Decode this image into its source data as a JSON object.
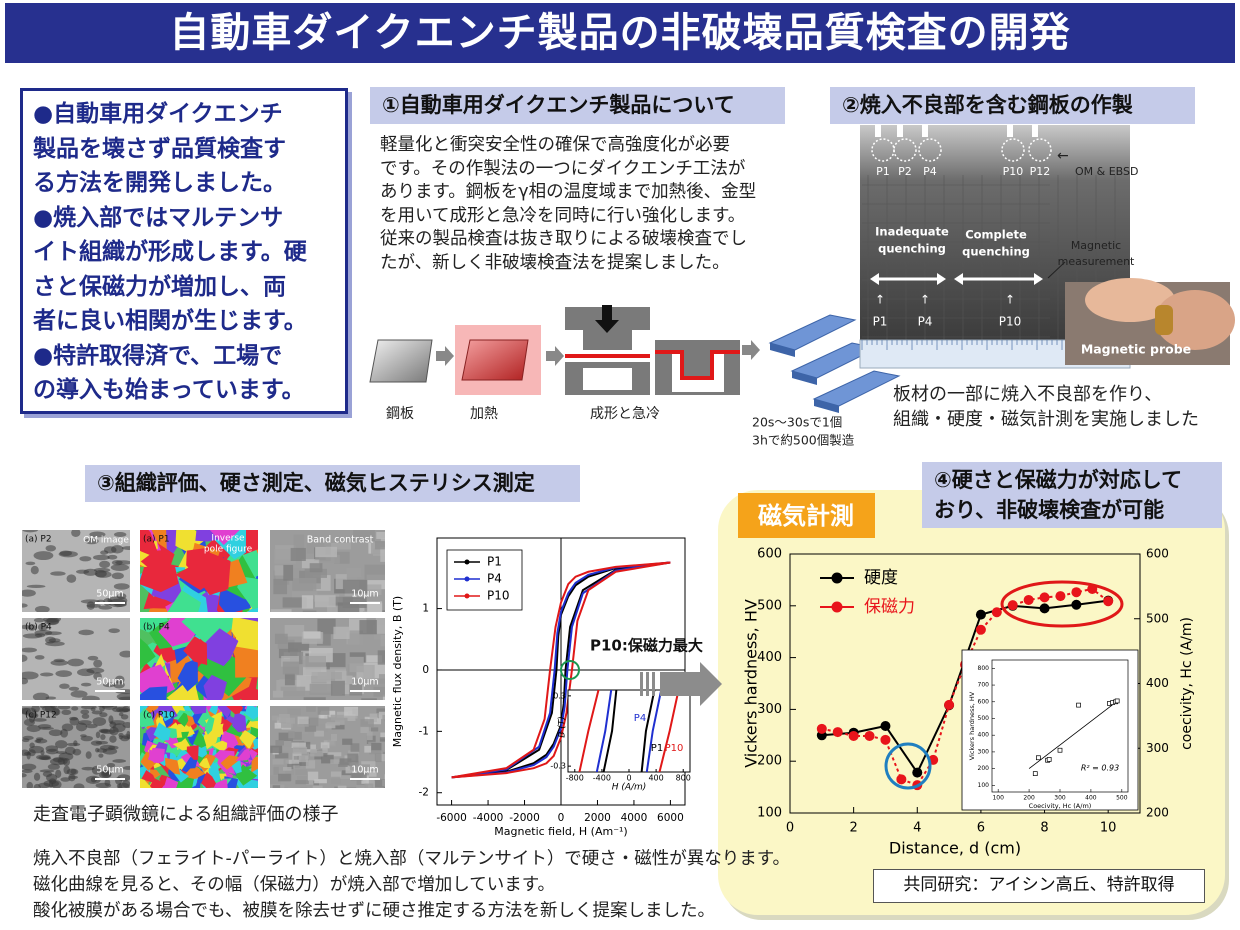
{
  "title": "自動車ダイクエンチ製品の非破壊品質検査の開発",
  "summary": [
    "●自動車用ダイクエンチ",
    "製品を壊さず品質検査す",
    "る方法を開発しました。",
    "●焼入部ではマルテンサ",
    "イト組織が形成します。硬",
    "さと保磁力が増加し、両",
    "者に良い相関が生じます。",
    "●特許取得済で、工場で",
    "の導入も始まっています。"
  ],
  "section1": {
    "heading": "①自動車用ダイクエンチ製品について",
    "text": [
      "軽量化と衝突安全性の確保で高強度化が必要",
      "です。その作製法の一つにダイクエンチ工法が",
      "あります。鋼板をγ相の温度域まで加熱後、金型",
      "を用いて成形と急冷を同時に行い強化します。",
      "従来の製品検査は抜き取りによる破壊検査でし",
      "たが、新しく非破壊検査法を提案しました。"
    ],
    "steps": [
      "鋼板",
      "加熱",
      "成形と急冷"
    ],
    "rate": [
      "20s～30sで1個",
      "3hで約500個製造"
    ]
  },
  "section2": {
    "heading": "②焼入不良部を含む鋼板の作製",
    "points_top": [
      "P1",
      "P2",
      "P4",
      "P10",
      "P12"
    ],
    "om_ebsd": "OM & EBSD",
    "inadequate": [
      "Inadequate",
      "quenching"
    ],
    "complete": [
      "Complete",
      "quenching"
    ],
    "measurement": [
      "Magnetic",
      "measurement"
    ],
    "points_bottom": [
      "P1",
      "P4",
      "P10"
    ],
    "probe": "Magnetic probe",
    "caption": [
      "板材の一部に焼入不良部を作り、",
      "組織・硬度・磁気計測を実施しました"
    ]
  },
  "section3": {
    "heading": "③組織評価、硬さ測定、磁気ヒステリシス測定",
    "om_labels": [
      "(a) P2",
      "(b) P4",
      "(c) P12"
    ],
    "ipf_labels": [
      "(a) P1",
      "(b) P4",
      "(c) P10"
    ],
    "om_title": "OM image",
    "ipf_title": [
      "Inverse",
      "pole figure"
    ],
    "band_title": "Band contrast",
    "om_scale": "50μm",
    "band_scale": "10μm",
    "caption": "走査電子顕微鏡による組織評価の様子"
  },
  "section4": {
    "heading": [
      "④硬さと保磁力が対応して",
      "おり、非破壊検査が可能"
    ],
    "tag": "磁気計測",
    "credit": "共同研究：アイシン高丘、特許取得"
  },
  "notes": [
    "焼入不良部（フェライト-パーライト）と焼入部（マルテンサイト）で硬さ・磁性が異なります。",
    "磁化曲線を見ると、その幅（保磁力）が焼入部で増加しています。",
    "酸化被膜がある場合でも、被膜を除去せずに硬さ推定する方法を新しく提案しました。"
  ],
  "chart_data": [
    {
      "type": "line",
      "xlabel": "Magnetic field, H (Am⁻¹)",
      "ylabel": "Magnetic flux density, B (T)",
      "xlim": [
        -6800,
        6800
      ],
      "ylim": [
        -2.2,
        2.15
      ],
      "xticks": [
        -6000,
        -4000,
        -2000,
        0,
        2000,
        4000,
        6000
      ],
      "yticks": [
        -2,
        -1,
        0,
        1
      ],
      "annotation": "P10:保磁力最大",
      "series": [
        {
          "name": "P1",
          "color": "#000000",
          "x": [
            6000,
            3000,
            1500,
            800,
            400,
            0,
            -150,
            -250,
            -500,
            -1200,
            -3000,
            -6000,
            -3000,
            -1500,
            -800,
            -400,
            0,
            150,
            250,
            500,
            1200,
            3000,
            6000
          ],
          "values": [
            1.75,
            1.66,
            1.52,
            1.38,
            1.2,
            0.9,
            0.55,
            0,
            -0.7,
            -1.3,
            -1.63,
            -1.75,
            -1.66,
            -1.52,
            -1.38,
            -1.2,
            -0.9,
            -0.55,
            0,
            0.7,
            1.3,
            1.63,
            1.75
          ]
        },
        {
          "name": "P4",
          "color": "#1f2fd0",
          "x": [
            6000,
            3000,
            1500,
            800,
            400,
            0,
            -200,
            -350,
            -600,
            -1200,
            -3000,
            -6000,
            -3000,
            -1500,
            -800,
            -400,
            0,
            200,
            350,
            600,
            1200,
            3000,
            6000
          ],
          "values": [
            1.75,
            1.67,
            1.55,
            1.42,
            1.25,
            0.95,
            0.6,
            0,
            -0.7,
            -1.25,
            -1.62,
            -1.75,
            -1.67,
            -1.55,
            -1.42,
            -1.25,
            -0.95,
            -0.6,
            0,
            0.7,
            1.25,
            1.62,
            1.75
          ]
        },
        {
          "name": "P10",
          "color": "#e01818",
          "x": [
            6000,
            3000,
            1500,
            800,
            400,
            0,
            -300,
            -600,
            -900,
            -1500,
            -3000,
            -6000,
            -3000,
            -1500,
            -800,
            -400,
            0,
            300,
            600,
            900,
            1500,
            3000,
            6000
          ],
          "values": [
            1.75,
            1.68,
            1.6,
            1.52,
            1.4,
            1.1,
            0.7,
            0,
            -0.8,
            -1.3,
            -1.6,
            -1.75,
            -1.68,
            -1.6,
            -1.52,
            -1.4,
            -1.1,
            -0.7,
            0,
            0.8,
            1.3,
            1.6,
            1.75
          ]
        }
      ],
      "zoom": {
        "xlim": [
          -900,
          900
        ],
        "ylim": [
          -0.35,
          0.35
        ],
        "xticks": [
          -800,
          -400,
          0,
          400,
          800
        ],
        "yticks": [
          -0.3,
          0.3
        ],
        "xlabel": "H (A/m)",
        "ylabel": "B (T)",
        "labels": [
          "P4",
          "P1",
          "P10"
        ]
      }
    },
    {
      "type": "line",
      "xlabel": "Distance, d (cm)",
      "ylabel": "Vickers hardness, HV",
      "y2label": "coecivity, Hc (A/m)",
      "xlim": [
        0,
        11
      ],
      "xticks": [
        0,
        2,
        4,
        6,
        8,
        10
      ],
      "ylim": [
        100,
        600
      ],
      "yticks": [
        100,
        200,
        300,
        400,
        500,
        600
      ],
      "y2lim": [
        200,
        600
      ],
      "y2ticks": [
        200,
        300,
        400,
        500,
        600
      ],
      "legend": "upper left",
      "series": [
        {
          "name": "硬度",
          "color": "#000000",
          "x": [
            1,
            2,
            3,
            4,
            5,
            6,
            7,
            8,
            9,
            10
          ],
          "values": [
            250,
            255,
            268,
            178,
            308,
            483,
            500,
            495,
            502,
            510
          ]
        },
        {
          "name": "保磁力",
          "color": "#e8141b",
          "axis": "y2",
          "x": [
            1,
            1.5,
            2,
            2.5,
            3,
            3.5,
            4,
            4.5,
            5,
            5.5,
            6,
            6.5,
            7,
            7.5,
            8,
            8.5,
            9,
            9.5,
            10
          ],
          "values": [
            330,
            325,
            319,
            319,
            313,
            252,
            243,
            282,
            367,
            429,
            483,
            510,
            521,
            529,
            533,
            535,
            541,
            546,
            527
          ]
        }
      ]
    },
    {
      "type": "scatter",
      "xlabel": "Coecivity, Hc (A/m)",
      "ylabel": "Vickers hardness, HV",
      "xlim": [
        80,
        520
      ],
      "xticks": [
        100,
        200,
        300,
        400,
        500
      ],
      "ylim": [
        60,
        850
      ],
      "yticks": [
        100,
        200,
        300,
        400,
        500,
        600,
        700,
        800
      ],
      "x": [
        220,
        230,
        260,
        265,
        300,
        360,
        460,
        470,
        480,
        485
      ],
      "values": [
        170,
        265,
        250,
        255,
        310,
        580,
        590,
        595,
        600,
        605
      ],
      "trend": {
        "x": [
          200,
          490
        ],
        "values": [
          200,
          610
        ]
      },
      "annotation": "R² = 0.93"
    }
  ]
}
